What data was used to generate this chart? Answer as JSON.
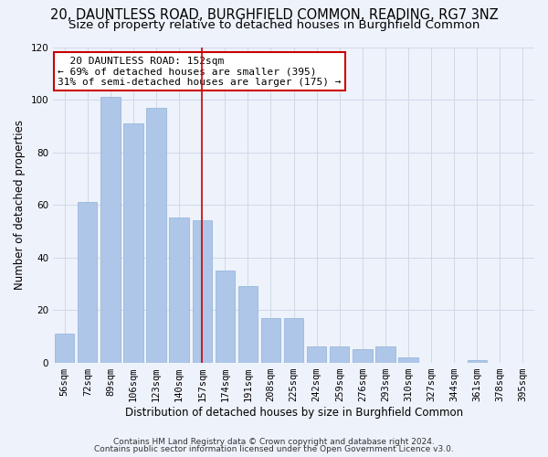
{
  "title1": "20, DAUNTLESS ROAD, BURGHFIELD COMMON, READING, RG7 3NZ",
  "title2": "Size of property relative to detached houses in Burghfield Common",
  "xlabel": "Distribution of detached houses by size in Burghfield Common",
  "ylabel": "Number of detached properties",
  "bar_labels": [
    "56sqm",
    "72sqm",
    "89sqm",
    "106sqm",
    "123sqm",
    "140sqm",
    "157sqm",
    "174sqm",
    "191sqm",
    "208sqm",
    "225sqm",
    "242sqm",
    "259sqm",
    "276sqm",
    "293sqm",
    "310sqm",
    "327sqm",
    "344sqm",
    "361sqm",
    "378sqm",
    "395sqm"
  ],
  "bar_values": [
    11,
    61,
    101,
    91,
    97,
    55,
    54,
    35,
    29,
    17,
    17,
    6,
    6,
    5,
    6,
    2,
    0,
    0,
    1,
    0,
    0
  ],
  "bar_color": "#aec6e8",
  "bar_edge_color": "#8fb0d8",
  "grid_color": "#d0d8e8",
  "background_color": "#eef2fb",
  "vline_color": "#cc0000",
  "annotation_line1": "  20 DAUNTLESS ROAD: 152sqm",
  "annotation_line2": "← 69% of detached houses are smaller (395)",
  "annotation_line3": "31% of semi-detached houses are larger (175) →",
  "annotation_box_color": "white",
  "annotation_box_edge_color": "#cc0000",
  "ylim": [
    0,
    120
  ],
  "yticks": [
    0,
    20,
    40,
    60,
    80,
    100,
    120
  ],
  "footnote1": "Contains HM Land Registry data © Crown copyright and database right 2024.",
  "footnote2": "Contains public sector information licensed under the Open Government Licence v3.0.",
  "title1_fontsize": 10.5,
  "title2_fontsize": 9.5,
  "xlabel_fontsize": 8.5,
  "ylabel_fontsize": 8.5,
  "tick_fontsize": 7.5,
  "annot_fontsize": 8,
  "footnote_fontsize": 6.5
}
